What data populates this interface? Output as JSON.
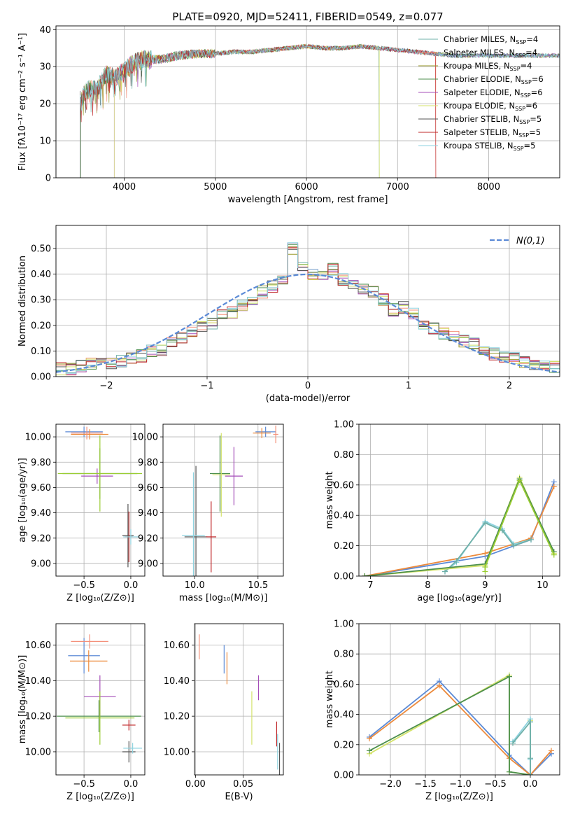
{
  "figure": {
    "title": "PLATE=0920, MJD=52411, FIBERID=0549, z=0.077"
  },
  "models": [
    {
      "name": "Chabrier MILES, N",
      "sub": "SSP",
      "tail": "=4",
      "color": "#6fb0a8"
    },
    {
      "name": "Salpeter MILES, N",
      "sub": "SSP",
      "tail": "=4",
      "color": "#f4907a"
    },
    {
      "name": "Kroupa MILES, N",
      "sub": "SSP",
      "tail": "=4",
      "color": "#9a9a2a"
    },
    {
      "name": "Chabrier ELODIE, N",
      "sub": "SSP",
      "tail": "=6",
      "color": "#4c8f4c"
    },
    {
      "name": "Salpeter ELODIE, N",
      "sub": "SSP",
      "tail": "=6",
      "color": "#a44db8"
    },
    {
      "name": "Kroupa ELODIE, N",
      "sub": "SSP",
      "tail": "=6",
      "color": "#d4e36a"
    },
    {
      "name": "Chabrier STELIB, N",
      "sub": "SSP",
      "tail": "=5",
      "color": "#555555"
    },
    {
      "name": "Salpeter STELIB, N",
      "sub": "SSP",
      "tail": "=5",
      "color": "#c0282a"
    },
    {
      "name": "Kroupa STELIB, N",
      "sub": "SSP",
      "tail": "=5",
      "color": "#8ed3e0"
    }
  ],
  "chart_data": [
    {
      "id": "spectrum",
      "type": "line",
      "xlabel": "wavelength [Angstrom, rest frame]",
      "ylabel": "Flux [fλ10⁻¹⁷ erg cm⁻² s⁻¹ A⁻¹]",
      "xlim": [
        3250,
        8780
      ],
      "ylim": [
        0,
        41
      ],
      "xticks": [
        4000,
        5000,
        6000,
        7000,
        8000
      ],
      "yticks": [
        0,
        10,
        20,
        30,
        40
      ],
      "continuum_x": [
        3520,
        3600,
        3700,
        3800,
        3900,
        4000,
        4100,
        4200,
        4400,
        4600,
        4800,
        5000,
        5200,
        5400,
        5600,
        5800,
        6000,
        6200,
        6400,
        6600,
        6800,
        7000,
        7200,
        7400,
        7600,
        7800,
        8000,
        8200,
        8400,
        8780
      ],
      "continuum_y": [
        21,
        24,
        24,
        28,
        27,
        29,
        31,
        32,
        32,
        33,
        33.5,
        33.5,
        34,
        34,
        34.5,
        35,
        35.5,
        35,
        35,
        35.5,
        35,
        34.5,
        34,
        33.5,
        33,
        33,
        33,
        33,
        33,
        33
      ],
      "grid": true
    },
    {
      "id": "residuals",
      "type": "line",
      "xlabel": "(data-model)/error",
      "ylabel": "Normed distribution",
      "xlim": [
        -2.5,
        2.5
      ],
      "ylim": [
        0,
        0.59
      ],
      "xticks": [
        -2,
        -1,
        0,
        1,
        2
      ],
      "yticks": [
        0.0,
        0.1,
        0.2,
        0.3,
        0.4,
        0.5
      ],
      "legend": "top-right",
      "reference": {
        "name": "N(0,1)",
        "mu": 0,
        "sigma": 1,
        "color": "#5b8ad6"
      },
      "hist_bins": [
        -2.5,
        -2.4,
        -2.3,
        -2.2,
        -2.1,
        -2.0,
        -1.9,
        -1.8,
        -1.7,
        -1.6,
        -1.5,
        -1.4,
        -1.3,
        -1.2,
        -1.1,
        -1.0,
        -0.9,
        -0.8,
        -0.7,
        -0.6,
        -0.5,
        -0.4,
        -0.3,
        -0.2,
        -0.1,
        0.0,
        0.1,
        0.2,
        0.3,
        0.4,
        0.5,
        0.6,
        0.7,
        0.8,
        0.9,
        1.0,
        1.1,
        1.2,
        1.3,
        1.4,
        1.5,
        1.6,
        1.7,
        1.8,
        1.9,
        2.0,
        2.1,
        2.2,
        2.3,
        2.4
      ],
      "hist_values": [
        0.03,
        0.03,
        0.04,
        0.05,
        0.05,
        0.05,
        0.06,
        0.07,
        0.08,
        0.1,
        0.1,
        0.13,
        0.15,
        0.17,
        0.2,
        0.21,
        0.24,
        0.25,
        0.28,
        0.3,
        0.33,
        0.35,
        0.37,
        0.5,
        0.43,
        0.4,
        0.39,
        0.42,
        0.38,
        0.36,
        0.34,
        0.33,
        0.3,
        0.26,
        0.27,
        0.25,
        0.21,
        0.19,
        0.17,
        0.16,
        0.14,
        0.13,
        0.11,
        0.09,
        0.08,
        0.07,
        0.06,
        0.05,
        0.04,
        0.04
      ],
      "grid": true
    },
    {
      "id": "z-age",
      "type": "scatter",
      "xlabel": "Z [log₁₀(Z/Z⊙)]",
      "ylabel": "age  [log₁₀(age/yr)]",
      "xlim": [
        -0.8,
        0.15
      ],
      "ylim": [
        8.9,
        10.1
      ],
      "xticks": [
        -0.5,
        0.0
      ],
      "yticks": [
        9.0,
        9.2,
        9.4,
        9.6,
        9.8,
        10.0
      ],
      "points": [
        {
          "x": -0.5,
          "y": 10.04,
          "xerr": 0.2,
          "yerr": 0.04,
          "color": "#5b8ad6"
        },
        {
          "x": -0.44,
          "y": 10.02,
          "xerr": 0.2,
          "yerr": 0.04,
          "color": "#ec8a3c"
        },
        {
          "x": -0.47,
          "y": 10.03,
          "xerr": 0.17,
          "yerr": 0.05,
          "color": "#f4907a"
        },
        {
          "x": -0.33,
          "y": 9.71,
          "xerr": 0.4,
          "yerr": 0.2,
          "color": "#4c8f4c"
        },
        {
          "x": -0.36,
          "y": 9.69,
          "xerr": 0.17,
          "yerr": 0.06,
          "color": "#a44db8"
        },
        {
          "x": -0.33,
          "y": 9.71,
          "xerr": 0.45,
          "yerr": 0.3,
          "color": "#9acd32"
        },
        {
          "x": -0.03,
          "y": 9.22,
          "xerr": 0.06,
          "yerr": 0.25,
          "color": "#555555"
        },
        {
          "x": -0.02,
          "y": 9.21,
          "xerr": 0.04,
          "yerr": 0.2,
          "color": "#c0282a"
        },
        {
          "x": 0.0,
          "y": 9.21,
          "xerr": 0.08,
          "yerr": 0.06,
          "color": "#8ed3e0"
        }
      ],
      "grid": true
    },
    {
      "id": "mass-age",
      "type": "scatter",
      "xlabel": "mass [log₁₀(M/M⊙)]",
      "ylabel": "",
      "xlim": [
        9.75,
        10.7
      ],
      "ylim": [
        8.9,
        10.1
      ],
      "xticks": [
        10.0,
        10.5
      ],
      "yticks": [
        9.0,
        9.2,
        9.4,
        9.6,
        9.8,
        10.0
      ],
      "points": [
        {
          "x": 10.56,
          "y": 10.04,
          "xerr": 0.08,
          "yerr": 0.04,
          "color": "#5b8ad6"
        },
        {
          "x": 10.53,
          "y": 10.03,
          "xerr": 0.07,
          "yerr": 0.04,
          "color": "#ec8a3c"
        },
        {
          "x": 10.64,
          "y": 10.02,
          "xerr": 0.02,
          "yerr": 0.07,
          "color": "#f4907a"
        },
        {
          "x": 10.2,
          "y": 9.71,
          "xerr": 0.08,
          "yerr": 0.3,
          "color": "#4c8f4c"
        },
        {
          "x": 10.31,
          "y": 9.69,
          "xerr": 0.07,
          "yerr": 0.23,
          "color": "#a44db8"
        },
        {
          "x": 10.21,
          "y": 9.7,
          "xerr": 0.07,
          "yerr": 0.33,
          "color": "#d4e36a"
        },
        {
          "x": 10.01,
          "y": 9.21,
          "xerr": 0.09,
          "yerr": 0.56,
          "color": "#555555"
        },
        {
          "x": 10.13,
          "y": 9.21,
          "xerr": 0.04,
          "yerr": 0.28,
          "color": "#c0282a"
        },
        {
          "x": 9.99,
          "y": 9.22,
          "xerr": 0.09,
          "yerr": 0.5,
          "color": "#8ed3e0"
        }
      ],
      "grid": true
    },
    {
      "id": "age-weight",
      "type": "line",
      "xlabel": "age  [log₁₀(age/yr)]",
      "ylabel": "mass weight",
      "xlim": [
        6.8,
        10.3
      ],
      "ylim": [
        0,
        1.0
      ],
      "xticks": [
        7,
        8,
        9,
        10
      ],
      "yticks": [
        0.0,
        0.2,
        0.4,
        0.6,
        0.8,
        1.0
      ],
      "series": [
        {
          "color": "#5b8ad6",
          "x": [
            6.9,
            9.0,
            9.8,
            10.2
          ],
          "y": [
            0.0,
            0.13,
            0.24,
            0.62
          ]
        },
        {
          "color": "#ec8a3c",
          "x": [
            6.9,
            9.0,
            9.8,
            10.2
          ],
          "y": [
            0.0,
            0.15,
            0.25,
            0.59
          ]
        },
        {
          "color": "#8ed3e0",
          "x": [
            8.3,
            8.5,
            9.0,
            9.3,
            9.5,
            9.8
          ],
          "y": [
            0.03,
            0.09,
            0.36,
            0.31,
            0.21,
            0.24
          ]
        },
        {
          "color": "#6fb0a8",
          "x": [
            8.3,
            8.5,
            9.0,
            9.3,
            9.5,
            9.8
          ],
          "y": [
            0.03,
            0.1,
            0.35,
            0.3,
            0.2,
            0.24
          ]
        },
        {
          "color": "#d4e36a",
          "x": [
            6.9,
            9.0,
            9.6,
            10.2
          ],
          "y": [
            0.0,
            0.07,
            0.65,
            0.15
          ]
        },
        {
          "color": "#4c8f4c",
          "x": [
            6.9,
            9.0,
            9.6,
            10.2
          ],
          "y": [
            0.0,
            0.08,
            0.64,
            0.16
          ]
        },
        {
          "color": "#9acd32",
          "x": [
            9.0,
            9.0,
            9.6,
            10.2
          ],
          "y": [
            0.03,
            0.06,
            0.63,
            0.14
          ]
        }
      ],
      "grid": true
    },
    {
      "id": "z-mass",
      "type": "scatter",
      "xlabel": "Z [log₁₀(Z/Z⊙)]",
      "ylabel": "mass [log₁₀(M/M⊙)]",
      "xlim": [
        -0.8,
        0.15
      ],
      "ylim": [
        9.87,
        10.72
      ],
      "xticks": [
        -0.5,
        0.0
      ],
      "yticks": [
        10.0,
        10.2,
        10.4,
        10.6
      ],
      "points": [
        {
          "x": -0.5,
          "y": 10.54,
          "xerr": 0.17,
          "yerr": 0.1,
          "color": "#5b8ad6"
        },
        {
          "x": -0.45,
          "y": 10.51,
          "xerr": 0.2,
          "yerr": 0.06,
          "color": "#ec8a3c"
        },
        {
          "x": -0.44,
          "y": 10.62,
          "xerr": 0.2,
          "yerr": 0.04,
          "color": "#f4907a"
        },
        {
          "x": -0.34,
          "y": 10.2,
          "xerr": 0.45,
          "yerr": 0.09,
          "color": "#4c8f4c"
        },
        {
          "x": -0.33,
          "y": 10.31,
          "xerr": 0.17,
          "yerr": 0.12,
          "color": "#a44db8"
        },
        {
          "x": -0.33,
          "y": 10.19,
          "xerr": 0.37,
          "yerr": 0.15,
          "color": "#9acd32"
        },
        {
          "x": -0.02,
          "y": 10.0,
          "xerr": 0.07,
          "yerr": 0.06,
          "color": "#555555"
        },
        {
          "x": -0.02,
          "y": 10.15,
          "xerr": 0.07,
          "yerr": 0.03,
          "color": "#c0282a"
        },
        {
          "x": 0.02,
          "y": 10.02,
          "xerr": 0.1,
          "yerr": 0.03,
          "color": "#8ed3e0"
        }
      ],
      "grid": true
    },
    {
      "id": "ebv-mass",
      "type": "scatter",
      "xlabel": "E(B-V)",
      "ylabel": "",
      "xlim": [
        -0.001,
        0.092
      ],
      "ylim": [
        9.87,
        10.72
      ],
      "xticks": [
        0.0,
        0.05
      ],
      "yticks": [
        10.0,
        10.2,
        10.4,
        10.6
      ],
      "points": [
        {
          "x": 0.004,
          "y": 10.59,
          "yerr": 0.07,
          "color": "#f4907a"
        },
        {
          "x": 0.03,
          "y": 10.52,
          "yerr": 0.08,
          "color": "#5b8ad6"
        },
        {
          "x": 0.033,
          "y": 10.47,
          "yerr": 0.09,
          "color": "#ec8a3c"
        },
        {
          "x": 0.059,
          "y": 10.19,
          "yerr": 0.15,
          "color": "#d4e36a"
        },
        {
          "x": 0.066,
          "y": 10.36,
          "yerr": 0.07,
          "color": "#a44db8"
        },
        {
          "x": 0.085,
          "y": 10.1,
          "yerr": 0.07,
          "color": "#c0282a"
        },
        {
          "x": 0.086,
          "y": 10.0,
          "yerr": 0.1,
          "color": "#8ed3e0"
        },
        {
          "x": 0.088,
          "y": 9.96,
          "yerr": 0.09,
          "color": "#555555"
        }
      ],
      "grid": true
    },
    {
      "id": "z-weight",
      "type": "line",
      "xlabel": "Z [log₁₀(Z/Z⊙)]",
      "ylabel": "mass weight",
      "xlim": [
        -2.45,
        0.42
      ],
      "ylim": [
        0,
        1.0
      ],
      "xticks": [
        -2.0,
        -1.5,
        -1.0,
        -0.5,
        0.0
      ],
      "yticks": [
        0.0,
        0.2,
        0.4,
        0.6,
        0.8,
        1.0
      ],
      "series": [
        {
          "color": "#5b8ad6",
          "x": [
            -2.3,
            -1.3,
            -0.3,
            0.0,
            0.3
          ],
          "y": [
            0.25,
            0.62,
            0.13,
            0.0,
            0.14
          ]
        },
        {
          "color": "#ec8a3c",
          "x": [
            -2.3,
            -1.3,
            -0.3,
            0.0,
            0.3
          ],
          "y": [
            0.24,
            0.59,
            0.11,
            0.0,
            0.16
          ]
        },
        {
          "color": "#d4e36a",
          "x": [
            -2.3,
            -0.3,
            -0.3,
            0.0,
            0.0
          ],
          "y": [
            0.14,
            0.66,
            0.02,
            0.0,
            0.36
          ]
        },
        {
          "color": "#4c8f4c",
          "x": [
            -2.3,
            -0.3,
            -0.3,
            0.0,
            0.0
          ],
          "y": [
            0.16,
            0.65,
            0.02,
            0.0,
            0.35
          ]
        },
        {
          "color": "#8ed3e0",
          "x": [
            -0.25,
            0.0,
            0.0,
            0.0
          ],
          "y": [
            0.22,
            0.37,
            0.1,
            0.0
          ]
        },
        {
          "color": "#6fb0a8",
          "x": [
            -0.25,
            0.0,
            0.0,
            0.0
          ],
          "y": [
            0.21,
            0.35,
            0.11,
            0.0
          ]
        }
      ],
      "grid": true
    }
  ]
}
